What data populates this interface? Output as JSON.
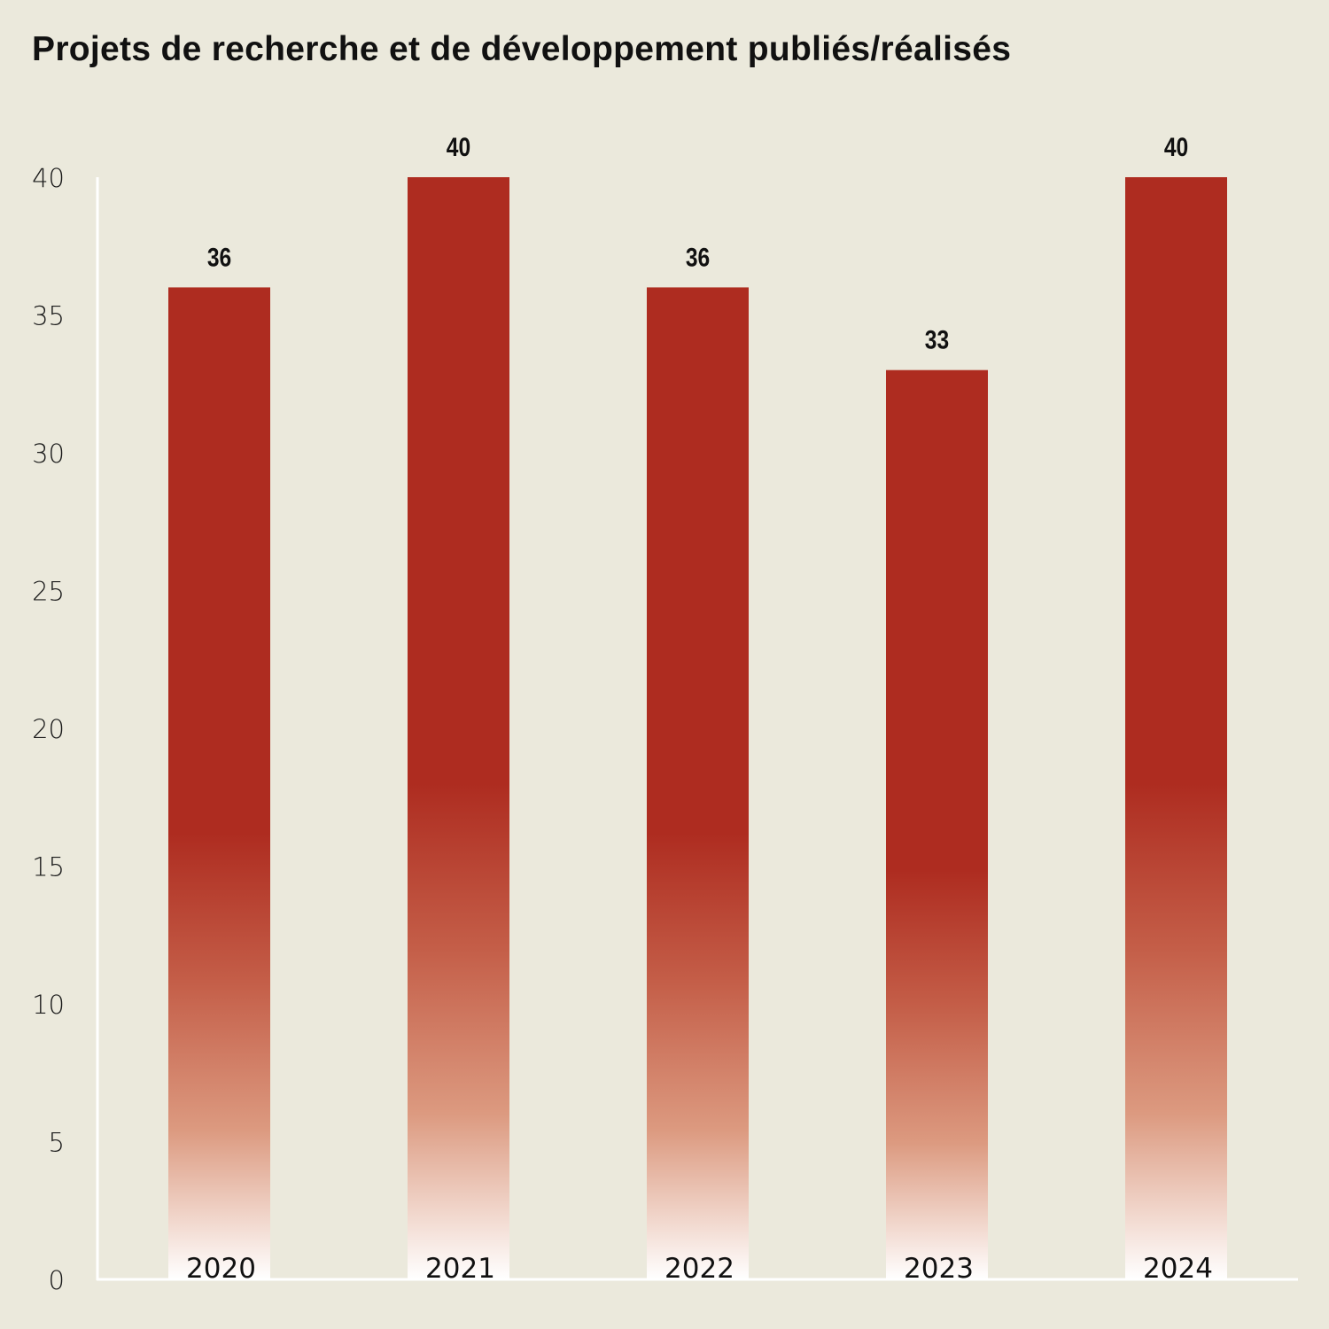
{
  "chart_data": {
    "type": "bar",
    "title": "Projets de recherche et de développement publiés/réalisés",
    "categories": [
      "2020",
      "2021",
      "2022",
      "2023",
      "2024"
    ],
    "values": [
      36,
      40,
      36,
      33,
      40
    ],
    "xlabel": "",
    "ylabel": "",
    "ylim": [
      0,
      40
    ],
    "yticks": [
      "0",
      "5",
      "10",
      "15",
      "20",
      "25",
      "30",
      "35",
      "40"
    ],
    "grid": false,
    "legend": "none",
    "data_labels": true,
    "colors": {
      "bar": "#ae2c20",
      "bar_fade": "#ffffff",
      "background": "#ebe9dc",
      "axis": "#ffffff"
    }
  }
}
